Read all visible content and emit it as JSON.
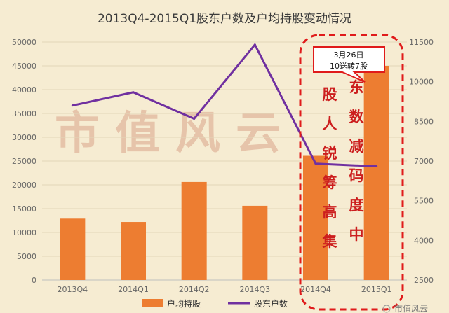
{
  "chart_data": {
    "type": "bar",
    "title": "2013Q4-2015Q1股东户数及户均持股变动情况",
    "categories": [
      "2013Q4",
      "2014Q1",
      "2014Q2",
      "2014Q3",
      "2014Q4",
      "2015Q1"
    ],
    "y_left": {
      "ticks": [
        "0",
        "5000",
        "10000",
        "15000",
        "20000",
        "25000",
        "30000",
        "35000",
        "40000",
        "45000",
        "50000"
      ],
      "ylim": [
        0,
        50000
      ]
    },
    "y_right": {
      "ticks": [
        "2500",
        "4000",
        "5500",
        "7000",
        "8500",
        "10000",
        "11500"
      ],
      "ylim": [
        2500,
        11500
      ]
    },
    "series": [
      {
        "name": "户均持股",
        "kind": "bar",
        "axis": "left",
        "color": "#ed7d31",
        "values": [
          12900,
          12200,
          20600,
          15600,
          26100,
          45000
        ]
      },
      {
        "name": "股东户数",
        "kind": "line",
        "axis": "right",
        "color": "#7030a0",
        "values": [
          9100,
          9600,
          8600,
          11400,
          6900,
          6800
        ]
      }
    ],
    "legend_position": "bottom",
    "annotations": {
      "callout": [
        "3月26日",
        "10送转7股"
      ],
      "vertical_col1": [
        "股",
        "人",
        "锐",
        "筹",
        "高",
        "集"
      ],
      "vertical_col2": [
        "东",
        "数",
        "减",
        "码",
        "度",
        "中"
      ],
      "watermark": "市值风云",
      "corner": "市值风云"
    }
  }
}
